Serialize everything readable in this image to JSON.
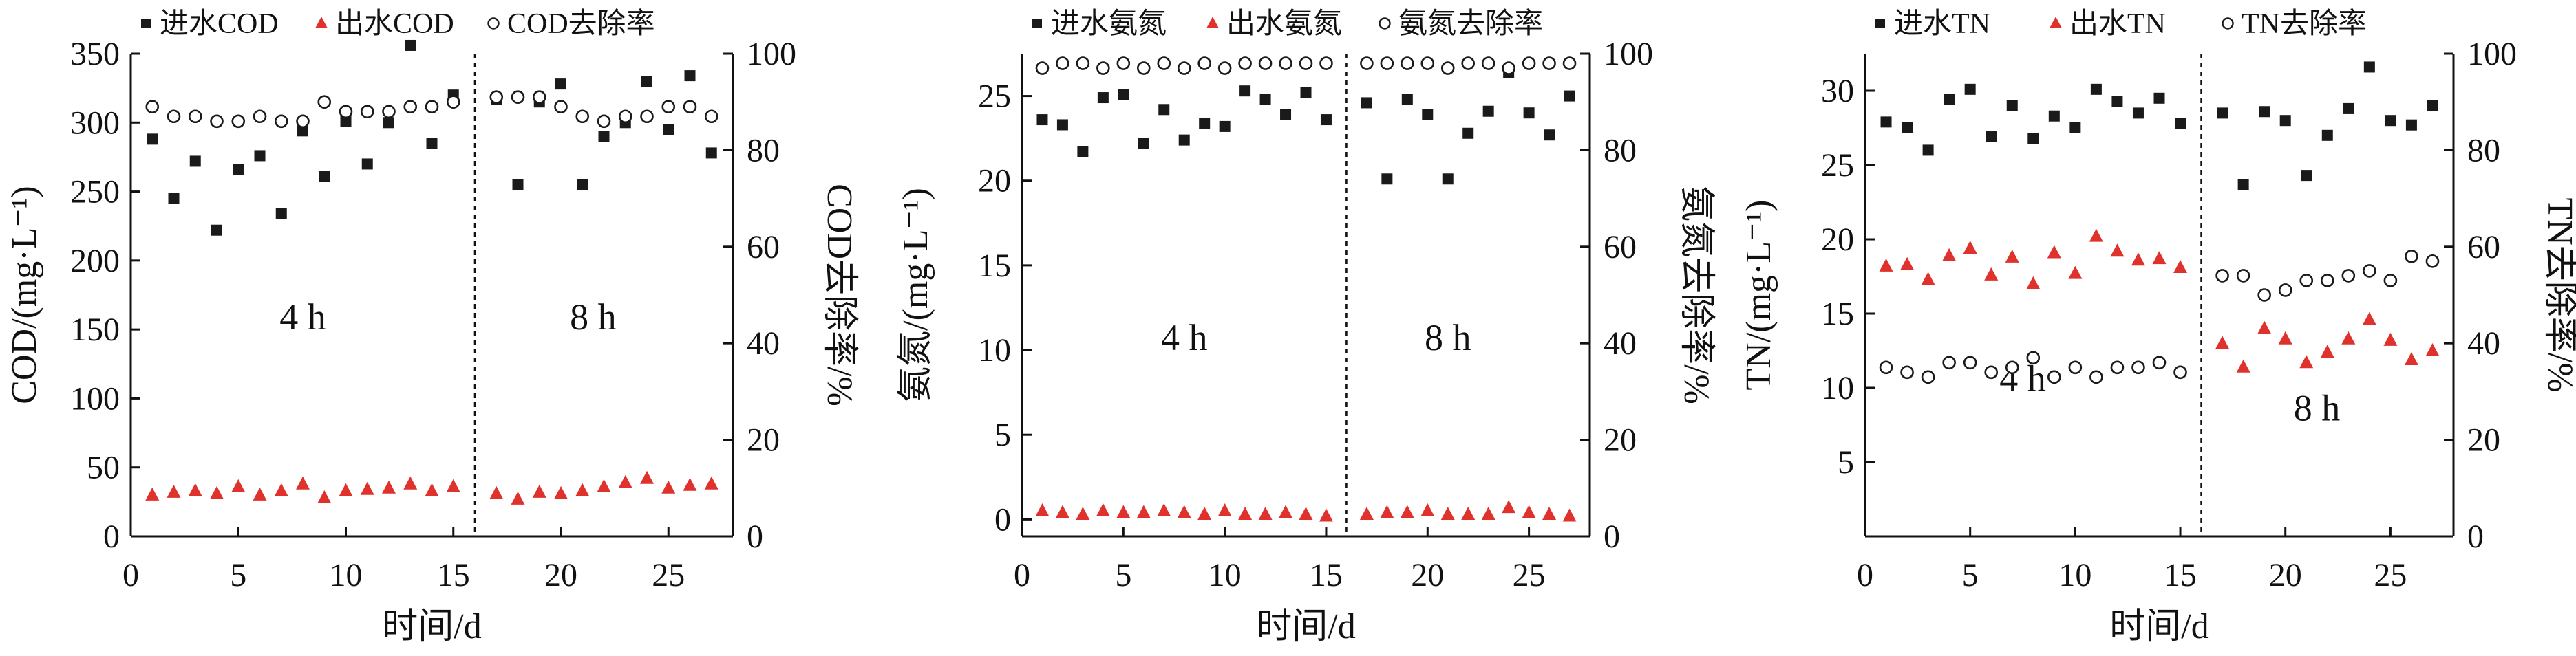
{
  "colors": {
    "influent": "#1a1a1a",
    "effluent": "#e0322d",
    "removal": "#1a1a1a",
    "axis": "#111111"
  },
  "chart_data": [
    {
      "type": "scatter",
      "title": "",
      "legend": [
        "进水COD",
        "出水COD",
        "COD去除率"
      ],
      "legend_position": "top",
      "xlabel": "时间/d",
      "ylabel": "COD/(mg·L⁻¹)",
      "y2label": "COD去除率/%",
      "xlim": [
        0,
        28
      ],
      "ylim": [
        0,
        350
      ],
      "y2lim": [
        0,
        100
      ],
      "xticks": [
        0,
        5,
        10,
        15,
        20,
        25
      ],
      "yticks": [
        0,
        50,
        100,
        150,
        200,
        250,
        300,
        350
      ],
      "y2ticks": [
        0,
        20,
        40,
        60,
        80,
        100
      ],
      "divider_x": 16,
      "phase_labels": [
        {
          "text": "4 h",
          "x": 8,
          "y": 150
        },
        {
          "text": "8 h",
          "x": 21.5,
          "y": 150
        }
      ],
      "x": [
        1,
        2,
        3,
        4,
        5,
        6,
        7,
        8,
        9,
        10,
        11,
        12,
        13,
        14,
        15,
        17,
        18,
        19,
        20,
        21,
        22,
        23,
        24,
        25,
        26,
        27
      ],
      "series": [
        {
          "name": "进水COD",
          "axis": "left",
          "marker": "square",
          "values": [
            288,
            245,
            272,
            222,
            266,
            276,
            234,
            294,
            261,
            301,
            270,
            300,
            356,
            285,
            320,
            317,
            255,
            315,
            328,
            255,
            290,
            300,
            330,
            295,
            334,
            278
          ]
        },
        {
          "name": "出水COD",
          "axis": "left",
          "marker": "triangle",
          "values": [
            30,
            32,
            33,
            31,
            36,
            30,
            33,
            38,
            28,
            33,
            34,
            35,
            38,
            33,
            36,
            31,
            27,
            32,
            31,
            33,
            36,
            39,
            42,
            35,
            37,
            38
          ]
        },
        {
          "name": "COD去除率",
          "axis": "right",
          "marker": "circle",
          "values": [
            89,
            87,
            87,
            86,
            86,
            87,
            86,
            86,
            90,
            88,
            88,
            88,
            89,
            89,
            90,
            91,
            91,
            91,
            89,
            87,
            86,
            87,
            87,
            89,
            89,
            87
          ]
        }
      ]
    },
    {
      "type": "scatter",
      "title": "",
      "legend": [
        "进水氨氮",
        "出水氨氮",
        "氨氮去除率"
      ],
      "legend_position": "top",
      "xlabel": "时间/d",
      "ylabel": "氨氮/(mg·L⁻¹)",
      "y2label": "氨氮去除率/%",
      "xlim": [
        0,
        28
      ],
      "ylim": [
        -1,
        27.5
      ],
      "y2lim": [
        0,
        100
      ],
      "xticks": [
        0,
        5,
        10,
        15,
        20,
        25
      ],
      "yticks": [
        0,
        5,
        10,
        15,
        20,
        25
      ],
      "y2ticks": [
        0,
        20,
        40,
        60,
        80,
        100
      ],
      "divider_x": 16,
      "phase_labels": [
        {
          "text": "4 h",
          "x": 8,
          "y": 10
        },
        {
          "text": "8 h",
          "x": 21,
          "y": 10
        }
      ],
      "x": [
        1,
        2,
        3,
        4,
        5,
        6,
        7,
        8,
        9,
        10,
        11,
        12,
        13,
        14,
        15,
        17,
        18,
        19,
        20,
        21,
        22,
        23,
        24,
        25,
        26,
        27
      ],
      "series": [
        {
          "name": "进水氨氮",
          "axis": "left",
          "marker": "square",
          "values": [
            23.6,
            23.3,
            21.7,
            24.9,
            25.1,
            22.2,
            24.2,
            22.4,
            23.4,
            23.2,
            25.3,
            24.8,
            23.9,
            25.2,
            23.6,
            24.6,
            20.1,
            24.8,
            23.9,
            20.1,
            22.8,
            24.1,
            26.4,
            24.0,
            22.7,
            25.0
          ]
        },
        {
          "name": "出水氨氮",
          "axis": "left",
          "marker": "triangle",
          "values": [
            0.5,
            0.4,
            0.3,
            0.5,
            0.4,
            0.4,
            0.5,
            0.4,
            0.3,
            0.5,
            0.3,
            0.3,
            0.4,
            0.3,
            0.2,
            0.3,
            0.4,
            0.4,
            0.5,
            0.3,
            0.3,
            0.3,
            0.7,
            0.4,
            0.3,
            0.2
          ]
        },
        {
          "name": "氨氮去除率",
          "axis": "right",
          "marker": "circle",
          "values": [
            97,
            98,
            98,
            97,
            98,
            97,
            98,
            97,
            98,
            97,
            98,
            98,
            98,
            98,
            98,
            98,
            98,
            98,
            98,
            97,
            98,
            98,
            97,
            98,
            98,
            98
          ]
        }
      ]
    },
    {
      "type": "scatter",
      "title": "",
      "legend": [
        "进水TN",
        "出水TN",
        "TN去除率"
      ],
      "legend_position": "top",
      "xlabel": "时间/d",
      "ylabel": "TN/(mg·L⁻¹)",
      "y2label": "TN去除率/%",
      "xlim": [
        0,
        28
      ],
      "ylim": [
        0,
        32.5
      ],
      "y2lim": [
        0,
        100
      ],
      "xticks": [
        0,
        5,
        10,
        15,
        20,
        25
      ],
      "yticks": [
        5,
        10,
        15,
        20,
        25,
        30
      ],
      "y2ticks": [
        0,
        20,
        40,
        60,
        80,
        100
      ],
      "divider_x": 16,
      "phase_labels": [
        {
          "text": "4 h",
          "x": 7.5,
          "y": 9.8
        },
        {
          "text": "8 h",
          "x": 21.5,
          "y": 7.8
        }
      ],
      "x": [
        1,
        2,
        3,
        4,
        5,
        6,
        7,
        8,
        9,
        10,
        11,
        12,
        13,
        14,
        15,
        17,
        18,
        19,
        20,
        21,
        22,
        23,
        24,
        25,
        26,
        27
      ],
      "series": [
        {
          "name": "进水TN",
          "axis": "left",
          "marker": "square",
          "values": [
            27.9,
            27.5,
            26.0,
            29.4,
            30.1,
            26.9,
            29.0,
            26.8,
            28.3,
            27.5,
            30.1,
            29.3,
            28.5,
            29.5,
            27.8,
            28.5,
            23.7,
            28.6,
            28.0,
            24.3,
            27.0,
            28.8,
            31.6,
            28.0,
            27.7,
            29.0
          ]
        },
        {
          "name": "出水TN",
          "axis": "left",
          "marker": "triangle",
          "values": [
            18.2,
            18.3,
            17.3,
            18.9,
            19.4,
            17.6,
            18.8,
            17.0,
            19.1,
            17.7,
            20.2,
            19.2,
            18.6,
            18.7,
            18.1,
            13.0,
            11.4,
            14.0,
            13.3,
            11.7,
            12.4,
            13.3,
            14.6,
            13.2,
            11.9,
            12.5
          ]
        },
        {
          "name": "TN去除率",
          "axis": "right",
          "marker": "circle",
          "values": [
            35,
            34,
            33,
            36,
            36,
            34,
            35,
            37,
            33,
            35,
            33,
            35,
            35,
            36,
            34,
            54,
            54,
            50,
            51,
            53,
            53,
            54,
            55,
            53,
            58,
            57
          ]
        }
      ]
    }
  ]
}
